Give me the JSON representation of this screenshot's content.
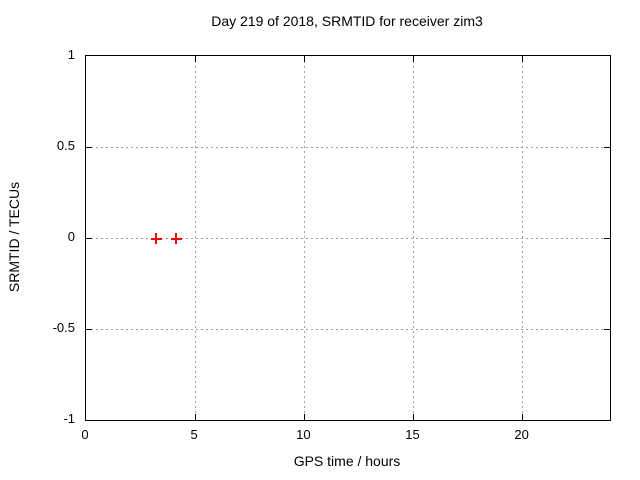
{
  "chart_data": {
    "type": "scatter",
    "title": "Day 219 of 2018, SRMTID for receiver zim3",
    "xlabel": "GPS time / hours",
    "ylabel": "SRMTID / TECUs",
    "xlim": [
      0,
      24
    ],
    "ylim": [
      -1,
      1
    ],
    "grid": true,
    "legend": "none",
    "xticks": [
      {
        "value": 0,
        "label": "0"
      },
      {
        "value": 5,
        "label": "5"
      },
      {
        "value": 10,
        "label": "10"
      },
      {
        "value": 15,
        "label": "15"
      },
      {
        "value": 20,
        "label": "20"
      }
    ],
    "yticks": [
      {
        "value": 1,
        "label": "1"
      },
      {
        "value": 0.5,
        "label": "0.5"
      },
      {
        "value": 0,
        "label": "0"
      },
      {
        "value": -0.5,
        "label": "-0.5"
      },
      {
        "value": -1,
        "label": "-1"
      }
    ],
    "series": [
      {
        "name": "SRMTID",
        "marker": "plus",
        "color": "#ff0000",
        "points": [
          {
            "x": 3.2,
            "y": 0
          },
          {
            "x": 4.1,
            "y": 0
          }
        ]
      }
    ]
  },
  "colors": {
    "background": "#ffffff",
    "border": "#000000",
    "grid": "#a0a0a0",
    "text": "#000000",
    "marker": "#ff0000"
  }
}
